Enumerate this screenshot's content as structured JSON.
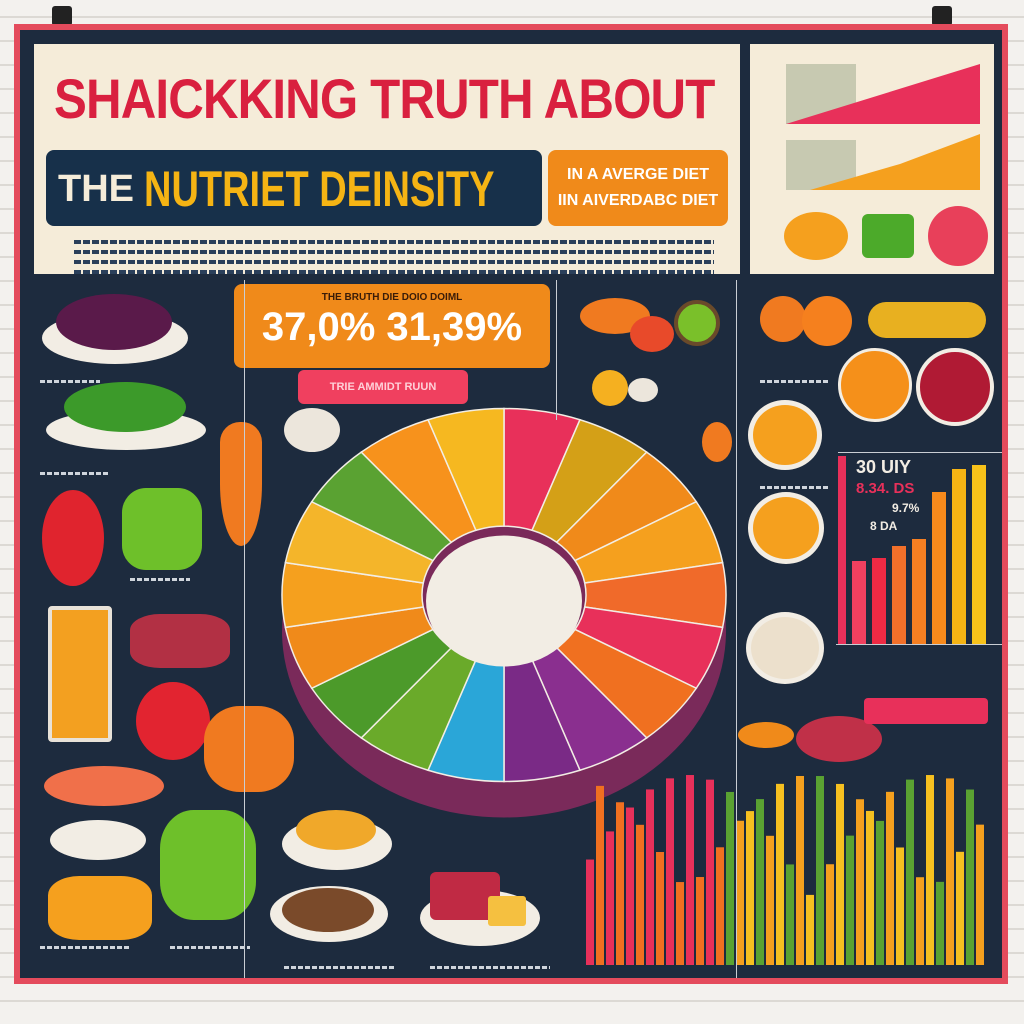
{
  "header": {
    "title_line1": "SHAICKKING TRUTH ABOUT",
    "the": "THE",
    "title_line2": "NUTRIET DEINSITY",
    "subtitle_line1": "IN A AVERGE DIET",
    "subtitle_line2": "IIN AIVERDABC DIET"
  },
  "stat": {
    "caption": "THE BRUTH DIE DOIO DOIML",
    "value": "37,0% 31,39%",
    "banner": "TRIE AMMIDT RUUN"
  },
  "right_chart": {
    "label1": "30 UIY",
    "label2": "8.34. DS",
    "label3": "9.7%",
    "label4": "8 DA",
    "bars": [
      1.0,
      0.44,
      0.46,
      0.52,
      0.56,
      0.81,
      0.93,
      0.95
    ],
    "colors": [
      "#e8305a",
      "#f0405f",
      "#ee2a44",
      "#f2702a",
      "#f57f22",
      "#f78a1c",
      "#f5b414",
      "#f7c21a"
    ]
  },
  "donut": {
    "colors": [
      "#e8305a",
      "#d4a017",
      "#f08a1a",
      "#f5a01e",
      "#f06a2a",
      "#e8305a",
      "#f07020",
      "#8a2f8f",
      "#7a2a86",
      "#2aa6d8",
      "#6aaa2a",
      "#4c9a2a",
      "#f08a1a",
      "#f5a01e",
      "#f4b52a",
      "#5aa232",
      "#f7921c",
      "#f6b820"
    ]
  },
  "colors": {
    "poster_border": "#e44b5c",
    "background": "#1d2b3e",
    "accent_orange": "#f08a1a",
    "accent_red": "#d9203f",
    "accent_yellow": "#f5b414"
  }
}
